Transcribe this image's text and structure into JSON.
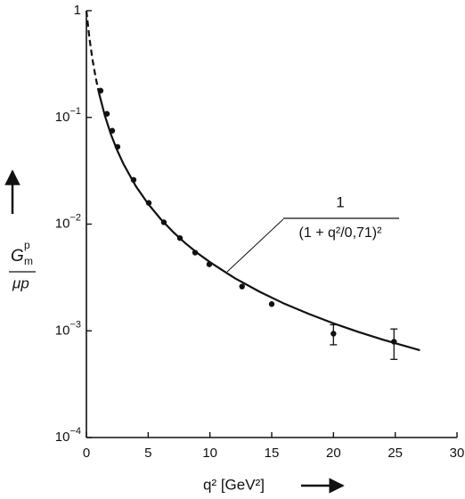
{
  "chart_data": {
    "type": "scatter",
    "xlabel": "q² [GeV²]",
    "ylabel": {
      "symbol": "G",
      "superscript": "p",
      "subscript": "m",
      "denominator": "μp"
    },
    "annotation": {
      "numerator": "1",
      "denominator": "(1 + q²/0,71)²"
    },
    "xlim": [
      0,
      30
    ],
    "xticks": [
      0,
      5,
      10,
      15,
      20,
      25,
      30
    ],
    "ylim": [
      0.0001,
      1
    ],
    "yscale": "log",
    "yticks": [
      {
        "value": 1,
        "label": "1"
      },
      {
        "value": 0.1,
        "label": "10−1"
      },
      {
        "value": 0.01,
        "label": "10−2"
      },
      {
        "value": 0.001,
        "label": "10−3"
      },
      {
        "value": 0.0001,
        "label": "10−4"
      }
    ],
    "points": {
      "color": "#111111",
      "x": [
        1.15,
        1.66,
        2.09,
        2.52,
        3.82,
        5.05,
        6.27,
        7.57,
        8.8,
        9.95,
        12.6,
        15.0,
        20.0,
        24.9
      ],
      "values": [
        0.178,
        0.108,
        0.075,
        0.053,
        0.026,
        0.0158,
        0.0104,
        0.0074,
        0.0054,
        0.0042,
        0.0026,
        0.00178,
        0.00094,
        0.00079
      ],
      "errors": [
        null,
        null,
        null,
        null,
        null,
        null,
        null,
        null,
        null,
        null,
        null,
        null,
        0.0002,
        0.00025
      ]
    },
    "series": [
      {
        "color": "#111111",
        "dashed": true,
        "x": [
          0,
          0.25,
          0.5,
          0.75,
          1.0
        ],
        "values": [
          1,
          0.547,
          0.344,
          0.2366,
          0.1724
        ]
      },
      {
        "color": "#111111",
        "dashed": false,
        "x": [
          1.0,
          1.5,
          2,
          2.5,
          3,
          4,
          5,
          6,
          7,
          8,
          9,
          10,
          12,
          14,
          16,
          18,
          20,
          22,
          24,
          27
        ],
        "values": [
          0.1724,
          0.1032,
          0.0686,
          0.0489,
          0.0366,
          0.0227,
          0.01546,
          0.0112,
          0.00848,
          0.00664,
          0.00534,
          0.0044,
          0.00312,
          0.00233,
          0.0018,
          0.00144,
          0.001175,
          0.000977,
          0.000826,
          0.000657
        ]
      }
    ]
  }
}
